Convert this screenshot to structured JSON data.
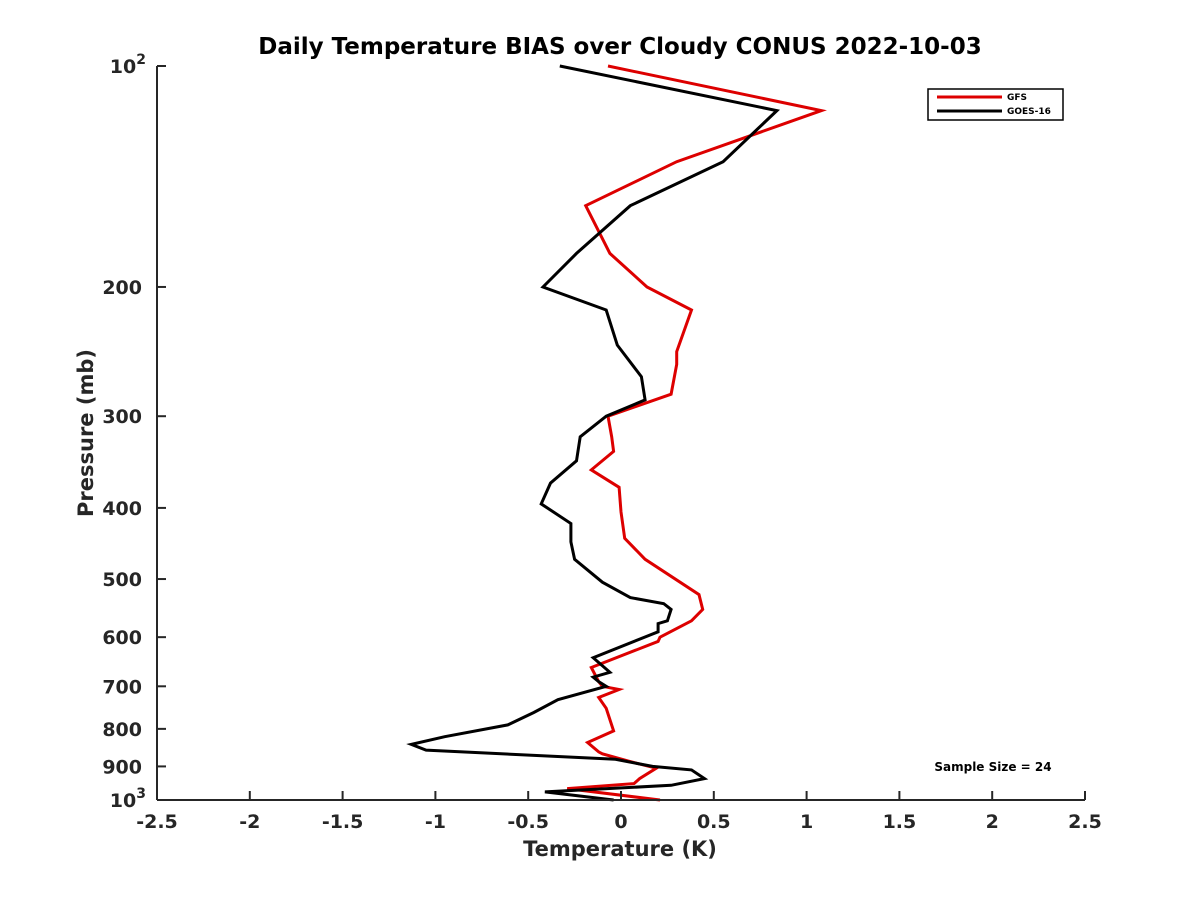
{
  "chart_data": {
    "type": "line",
    "title": "Daily Temperature BIAS over Cloudy CONUS 2022-10-03",
    "xlabel": "Temperature (K)",
    "ylabel": "Pressure (mb)",
    "xlim": [
      -2.5,
      2.5
    ],
    "ylim": [
      100,
      1000
    ],
    "y_scale": "log",
    "y_reversed": true,
    "grid": false,
    "legend_position": "top-right",
    "x_ticks": [
      "-2.5",
      "-2",
      "-1.5",
      "-1",
      "-0.5",
      "0",
      "0.5",
      "1",
      "1.5",
      "2",
      "2.5"
    ],
    "y_ticks": [
      {
        "value": 100,
        "base": "10",
        "exp": "2"
      },
      {
        "value": 200,
        "label": "200"
      },
      {
        "value": 300,
        "label": "300"
      },
      {
        "value": 400,
        "label": "400"
      },
      {
        "value": 500,
        "label": "500"
      },
      {
        "value": 600,
        "label": "600"
      },
      {
        "value": 700,
        "label": "700"
      },
      {
        "value": 800,
        "label": "800"
      },
      {
        "value": 900,
        "label": "900"
      },
      {
        "value": 1000,
        "base": "10",
        "exp": "3"
      }
    ],
    "annotation": "Sample Size = 24",
    "series": [
      {
        "name": "GFS",
        "color": "#dd0000",
        "x": [
          -0.07,
          1.08,
          0.3,
          -0.19,
          -0.06,
          0.14,
          0.38,
          0.3,
          0.3,
          0.27,
          -0.07,
          -0.05,
          -0.04,
          -0.16,
          -0.01,
          0.0,
          0.02,
          0.13,
          0.42,
          0.44,
          0.38,
          0.21,
          0.2,
          -0.16,
          -0.12,
          -0.1,
          -0.01,
          -0.12,
          -0.08,
          -0.04,
          -0.18,
          -0.12,
          -0.1,
          0.04,
          0.19,
          0.1,
          0.07,
          -0.29,
          0.21
        ],
        "y": [
          100,
          115,
          135,
          155,
          180,
          200,
          215,
          245,
          255,
          280,
          300,
          320,
          335,
          355,
          375,
          405,
          440,
          470,
          525,
          550,
          570,
          600,
          608,
          660,
          690,
          700,
          707,
          725,
          750,
          805,
          835,
          860,
          865,
          885,
          905,
          935,
          950,
          965,
          1000
        ]
      },
      {
        "name": "GOES-16",
        "color": "#000000",
        "x": [
          -0.33,
          0.84,
          0.55,
          0.05,
          -0.24,
          -0.42,
          -0.08,
          -0.02,
          0.11,
          0.13,
          -0.08,
          -0.22,
          -0.24,
          -0.38,
          -0.43,
          -0.27,
          -0.27,
          -0.25,
          -0.1,
          0.05,
          0.23,
          0.27,
          0.25,
          0.2,
          0.2,
          -0.15,
          -0.06,
          -0.15,
          -0.12,
          -0.08,
          -0.34,
          -0.47,
          -0.61,
          -0.95,
          -1.13,
          -1.05,
          -0.03,
          0.17,
          0.38,
          0.45,
          0.27,
          -0.41,
          -0.04
        ],
        "y": [
          100,
          115,
          135,
          155,
          180,
          200,
          215,
          240,
          265,
          285,
          300,
          320,
          345,
          370,
          395,
          420,
          445,
          470,
          505,
          530,
          540,
          550,
          570,
          575,
          590,
          640,
          670,
          680,
          690,
          700,
          730,
          760,
          790,
          820,
          840,
          855,
          880,
          900,
          910,
          935,
          955,
          975,
          1000
        ]
      }
    ]
  }
}
